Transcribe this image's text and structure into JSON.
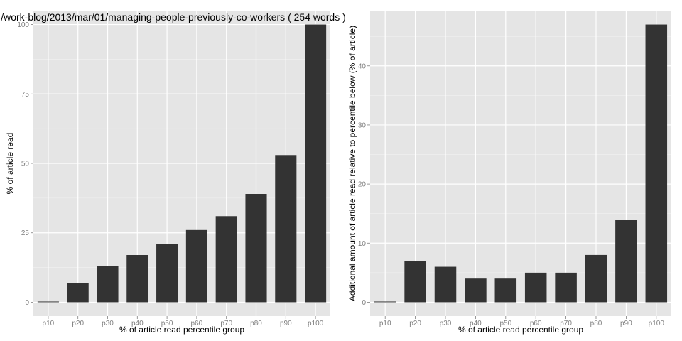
{
  "title": "/work-blog/2013/mar/01/managing-people-previously-co-workers ( 254 words )",
  "colors": {
    "panel": "#e5e5e5",
    "grid_major": "#ffffff",
    "grid_minor": "#f2f2f2",
    "bar": "#333333",
    "tick_text": "#7f7f7f"
  },
  "chart_data": [
    {
      "type": "bar",
      "title": "/work-blog/2013/mar/01/managing-people-previously-co-workers ( 254 words )",
      "xlabel": "% of article read percentile group",
      "ylabel": "% of article read",
      "categories": [
        "p10",
        "p20",
        "p30",
        "p40",
        "p50",
        "p60",
        "p70",
        "p80",
        "p90",
        "p100"
      ],
      "values": [
        0,
        7,
        13,
        17,
        21,
        26,
        31,
        39,
        53,
        100
      ],
      "ylim": [
        -5,
        105
      ],
      "yticks": [
        0,
        25,
        50,
        75,
        100
      ],
      "ytick_labels": [
        "0",
        "25",
        "50",
        "75",
        "100"
      ],
      "grid": true
    },
    {
      "type": "bar",
      "xlabel": "% of article read percentile group",
      "ylabel": "Additional amount of article read relative to percentile below (% of article)",
      "categories": [
        "p10",
        "p20",
        "p30",
        "p40",
        "p50",
        "p60",
        "p70",
        "p80",
        "p90",
        "p100"
      ],
      "values": [
        0,
        7,
        6,
        4,
        4,
        5,
        5,
        8,
        14,
        47
      ],
      "ylim": [
        -2.35,
        49.35
      ],
      "yticks": [
        0,
        10,
        20,
        30,
        40
      ],
      "ytick_labels": [
        "0",
        "10",
        "20",
        "30",
        "40"
      ],
      "grid": true
    }
  ]
}
